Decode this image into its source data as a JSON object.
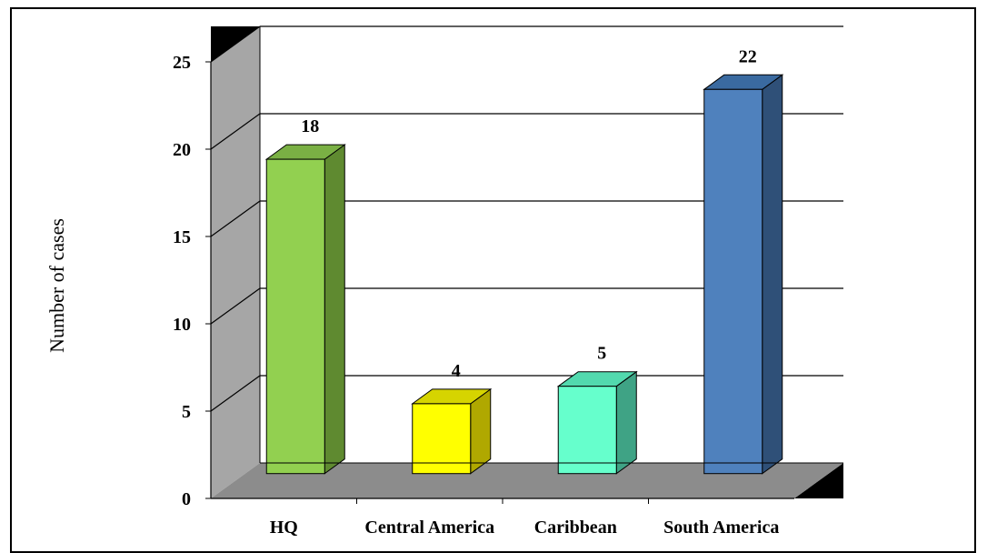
{
  "chart_data": {
    "type": "bar",
    "categories": [
      "HQ",
      "Central America",
      "Caribbean",
      "South America"
    ],
    "values": [
      18,
      4,
      5,
      22
    ],
    "data_labels": [
      "18",
      "4",
      "5",
      "22"
    ],
    "title": "",
    "xlabel": "",
    "ylabel": "Number of cases",
    "ylim": [
      0,
      25
    ],
    "yticks": [
      "0",
      "5",
      "10",
      "15",
      "20",
      "25"
    ],
    "grid": true,
    "legend": "none",
    "style": "3d-column",
    "colors": {
      "bars_front": [
        "#92d050",
        "#ffff00",
        "#66ffcc",
        "#4f81bd"
      ],
      "bars_side": [
        "#5f8a30",
        "#b0a800",
        "#3fa385",
        "#2f5078"
      ],
      "bars_top": [
        "#7ab044",
        "#d6d400",
        "#52d9ae",
        "#3a6aa0"
      ],
      "back_wall": "#ffffff",
      "side_wall": "#a6a6a6",
      "floor": "#8c8c8c",
      "corner": "#000000"
    }
  }
}
